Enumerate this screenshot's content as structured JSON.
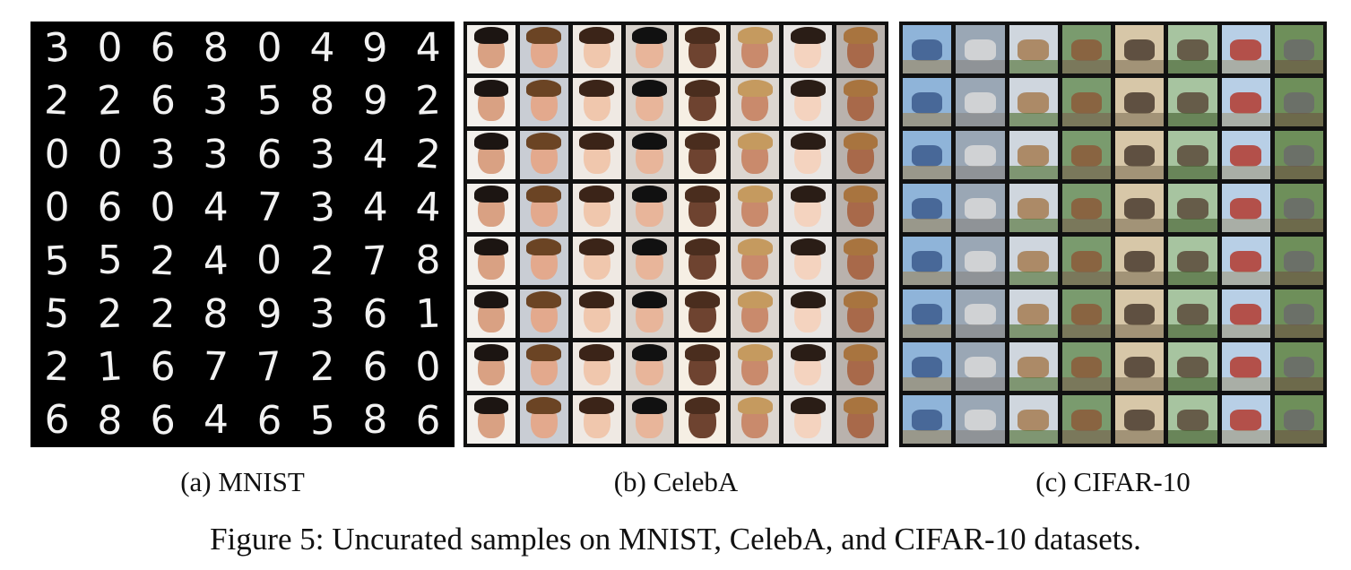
{
  "panels": {
    "mnist": {
      "caption": "(a) MNIST",
      "digits": [
        [
          "3",
          "0",
          "6",
          "8",
          "0",
          "4",
          "9",
          "4"
        ],
        [
          "2",
          "2",
          "6",
          "3",
          "5",
          "8",
          "9",
          "2"
        ],
        [
          "0",
          "0",
          "3",
          "3",
          "6",
          "3",
          "4",
          "2"
        ],
        [
          "0",
          "6",
          "0",
          "4",
          "7",
          "3",
          "4",
          "4"
        ],
        [
          "5",
          "5",
          "2",
          "4",
          "0",
          "2",
          "7",
          "8"
        ],
        [
          "5",
          "2",
          "2",
          "8",
          "9",
          "3",
          "6",
          "1"
        ],
        [
          "2",
          "1",
          "6",
          "7",
          "7",
          "2",
          "6",
          "0"
        ],
        [
          "6",
          "8",
          "6",
          "4",
          "6",
          "5",
          "8",
          "6"
        ]
      ]
    },
    "celeba": {
      "caption": "(b) CelebA"
    },
    "cifar": {
      "caption": "(c) CIFAR-10"
    }
  },
  "figure_caption": "Figure 5: Uncurated samples on MNIST, CelebA, and CIFAR-10 datasets.",
  "colors": {
    "skin": [
      "#e8b59a",
      "#d9a183",
      "#c98a6c",
      "#f0c7ad",
      "#a8694a",
      "#6e4330",
      "#e3a98d",
      "#f4d3bf"
    ],
    "hair": [
      "#3b2418",
      "#6b4424",
      "#1c1512",
      "#a8743f",
      "#2a1d16",
      "#c59a5f",
      "#4a2d1e",
      "#111111"
    ],
    "bg_faces": [
      "#f3f0ec",
      "#d8d2cc",
      "#e9e6e4",
      "#c9cdd4",
      "#f6efe4",
      "#b9b2ad",
      "#efe9e3",
      "#dcd6d0"
    ],
    "cifar_bg": [
      "#8fb4d9",
      "#a7c4a0",
      "#cfd6de",
      "#6e8f5a",
      "#d7c7a8",
      "#9aa7b5",
      "#b8cfe6",
      "#7a9b6e"
    ],
    "cifar_fg": [
      "#5a4a3a",
      "#3c5b8c",
      "#8c5a3a",
      "#b23a2e",
      "#d9d9d9",
      "#4a3b2f",
      "#6b6b6b",
      "#a67c52"
    ],
    "cifar_ground": [
      "#7a6a52",
      "#5d7a45",
      "#8a8a8a",
      "#9c8b6a",
      "#6c5a44",
      "#a3a08a",
      "#4f6b3a",
      "#8b7d63"
    ]
  }
}
